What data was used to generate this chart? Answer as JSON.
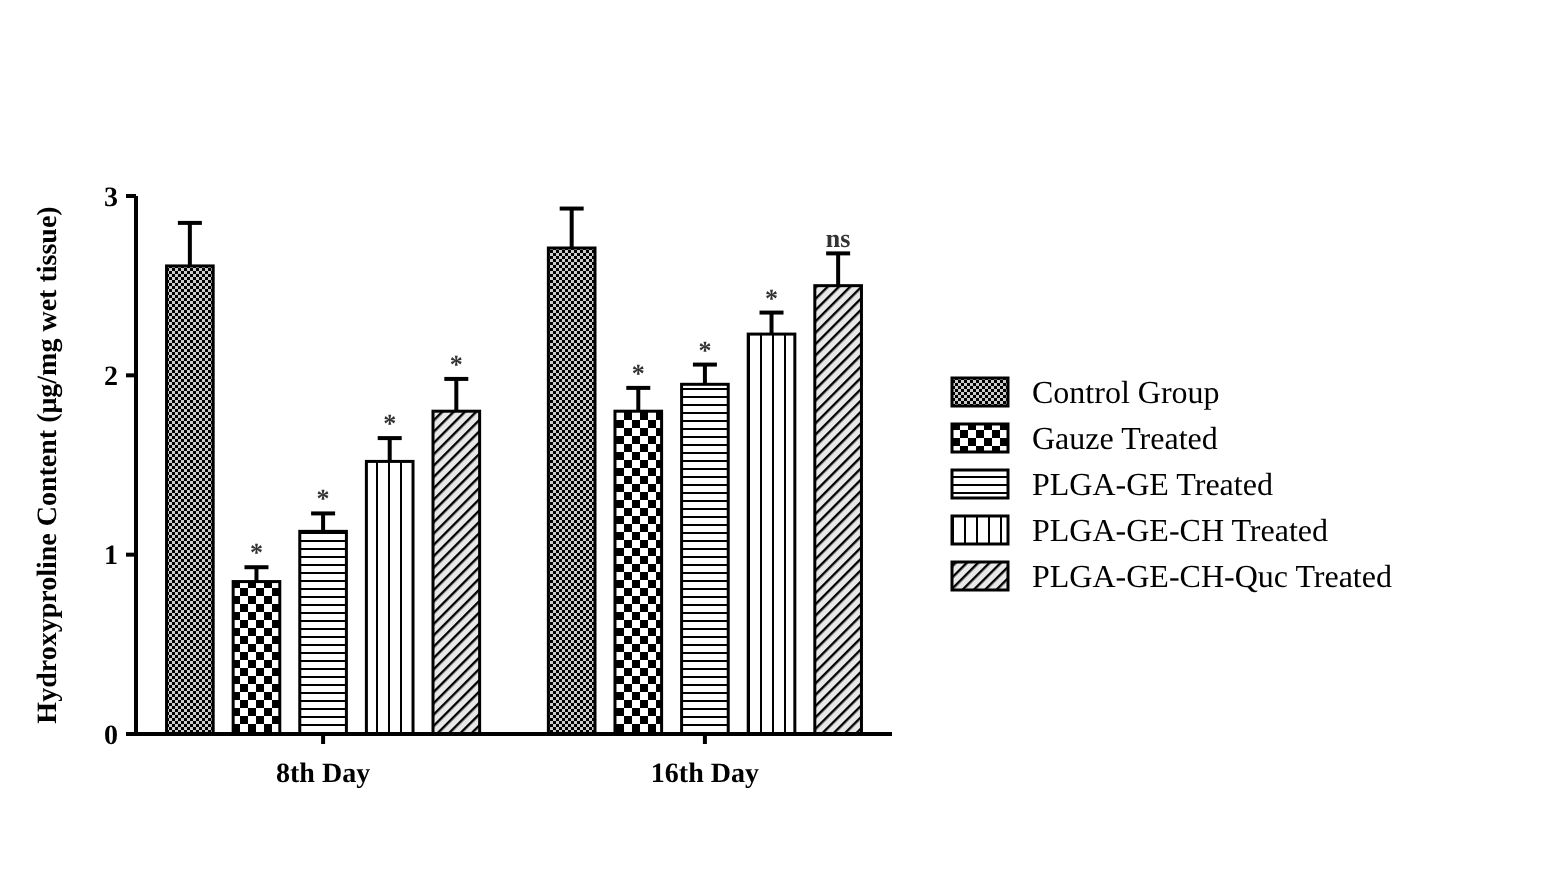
{
  "chart_data": {
    "type": "bar",
    "ylabel": "Hydroxyproline Content (μg/mg wet tissue)",
    "categories": [
      "8th Day",
      "16th Day"
    ],
    "series": [
      {
        "name": "Control Group",
        "color": "#000000",
        "values": [
          2.61,
          2.71
        ],
        "errors": [
          0.24,
          0.22
        ]
      },
      {
        "name": "Gauze Treated",
        "color": "#000000",
        "values": [
          0.85,
          1.8
        ],
        "errors": [
          0.08,
          0.13
        ]
      },
      {
        "name": "PLGA-GE Treated",
        "color": "#000000",
        "values": [
          1.13,
          1.95
        ],
        "errors": [
          0.1,
          0.11
        ]
      },
      {
        "name": "PLGA-GE-CH Treated",
        "color": "#000000",
        "values": [
          1.52,
          2.23
        ],
        "errors": [
          0.13,
          0.12
        ]
      },
      {
        "name": "PLGA-GE-CH-Quc Treated",
        "color": "#000000",
        "values": [
          1.8,
          2.5
        ],
        "errors": [
          0.18,
          0.18
        ]
      }
    ],
    "ylim": [
      0,
      3
    ],
    "yticks": [
      0,
      1,
      2,
      3
    ],
    "legend": "right",
    "annotations": [
      "*",
      "*",
      "*",
      "*",
      "*",
      "*",
      "*",
      "ns"
    ]
  }
}
